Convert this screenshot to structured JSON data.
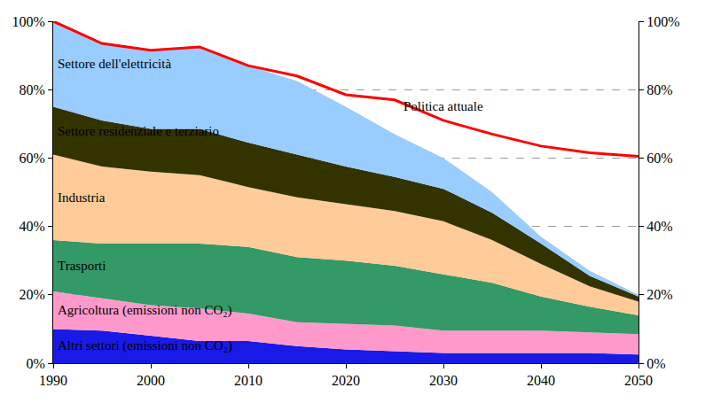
{
  "chart_data": {
    "type": "area",
    "stacked": true,
    "grid": true,
    "x": [
      1990,
      1995,
      2000,
      2005,
      2010,
      2015,
      2020,
      2025,
      2030,
      2035,
      2040,
      2045,
      2050
    ],
    "xlim": [
      1990,
      2050
    ],
    "xticks": [
      1990,
      2000,
      2010,
      2020,
      2030,
      2040,
      2050
    ],
    "ylim": [
      0,
      100
    ],
    "yticks": [
      {
        "value": 0,
        "label": "0%"
      },
      {
        "value": 20,
        "label": "20%"
      },
      {
        "value": 40,
        "label": "40%"
      },
      {
        "value": 60,
        "label": "60%"
      },
      {
        "value": 80,
        "label": "80%"
      },
      {
        "value": 100,
        "label": "100%"
      }
    ],
    "y2lim": [
      0,
      100
    ],
    "y2ticks": [
      {
        "value": 0,
        "label": "0%"
      },
      {
        "value": 20,
        "label": "20%"
      },
      {
        "value": 40,
        "label": "40%"
      },
      {
        "value": 60,
        "label": "60%"
      },
      {
        "value": 80,
        "label": "80%"
      },
      {
        "value": 100,
        "label": "100%"
      }
    ],
    "series": [
      {
        "name": "Altri settori (emissioni non CO₂)",
        "color": "#1a1ae6",
        "values": [
          10,
          9.5,
          8,
          6.5,
          6.5,
          5,
          4,
          3.5,
          3,
          3,
          3,
          3,
          2.5
        ]
      },
      {
        "name": "Agricoltura (emissioni non CO₂)",
        "color": "#ff99cc",
        "values": [
          11,
          9.5,
          9,
          9.5,
          8,
          7,
          7.5,
          7.5,
          6.5,
          6.5,
          6.5,
          6,
          6
        ]
      },
      {
        "name": "Trasporti",
        "color": "#339966",
        "values": [
          15,
          16,
          18,
          19,
          19.5,
          19,
          18.5,
          17.5,
          16.5,
          14,
          10,
          7.5,
          5.5
        ]
      },
      {
        "name": "Industria",
        "color": "#ffcc99",
        "values": [
          25,
          22.5,
          21,
          20,
          17.5,
          17.5,
          16.5,
          16,
          15.5,
          12.5,
          9.5,
          6,
          4
        ]
      },
      {
        "name": "Settore residenziale e terziario",
        "color": "#333300",
        "values": [
          14,
          13.5,
          12.5,
          13.5,
          13,
          12.5,
          11,
          10,
          9.5,
          8,
          6,
          3,
          1.5
        ]
      },
      {
        "name": "Settore dell'elettricità",
        "color": "#99ccff",
        "values": [
          25,
          22.5,
          23,
          24,
          22.5,
          21.5,
          17.5,
          12.5,
          9,
          6,
          2,
          1.5,
          0.5
        ]
      },
      {
        "name": "Politica attuale",
        "type": "line",
        "color": "#ff0000",
        "values": [
          100,
          93.5,
          91.5,
          92.5,
          87,
          84,
          78.5,
          77,
          71,
          67,
          63.5,
          61.5,
          60.5
        ]
      }
    ]
  }
}
